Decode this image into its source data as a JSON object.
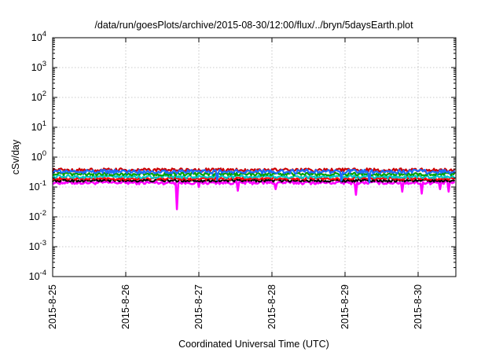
{
  "chart_data": {
    "type": "line",
    "title": "/data/run/goesPlots/archive/2015-08-30/12:00/flux/../bryn/5daysEarth.plot",
    "xlabel": "Coordinated Universal Time (UTC)",
    "ylabel": "cSv/day",
    "yscale": "log",
    "ylim": [
      0.0001,
      10000
    ],
    "xlim": [
      "2015-08-25",
      "2015-08-30 12:00"
    ],
    "grid": true,
    "x_ticks": [
      "2015-8-25",
      "2015-8-26",
      "2015-8-27",
      "2015-8-28",
      "2015-8-29",
      "2015-8-30"
    ],
    "y_ticks": [
      {
        "base": "10",
        "exp": "-4"
      },
      {
        "base": "10",
        "exp": "-3"
      },
      {
        "base": "10",
        "exp": "-2"
      },
      {
        "base": "10",
        "exp": "-1"
      },
      {
        "base": "10",
        "exp": "0"
      },
      {
        "base": "10",
        "exp": "1"
      },
      {
        "base": "10",
        "exp": "2"
      },
      {
        "base": "10",
        "exp": "3"
      },
      {
        "base": "10",
        "exp": "4"
      }
    ],
    "series": [
      {
        "color": "#ff00ff",
        "base": 0.14,
        "amp": 0.12,
        "dips": [
          [
            1.7,
            0.018
          ],
          [
            2.53,
            0.075
          ],
          [
            3.05,
            0.085
          ],
          [
            4.15,
            0.055
          ],
          [
            4.78,
            0.07
          ],
          [
            5.05,
            0.06
          ],
          [
            5.42,
            0.07
          ],
          [
            5.3,
            0.085
          ],
          [
            2.0,
            0.1
          ]
        ]
      },
      {
        "color": "#000000",
        "base": 0.165,
        "amp": 0.1,
        "dips": []
      },
      {
        "color": "#ff0000",
        "base": 0.19,
        "amp": 0.1,
        "dips": []
      },
      {
        "color": "#00c8c8",
        "base": 0.22,
        "amp": 0.12,
        "dips": []
      },
      {
        "color": "#00a000",
        "base": 0.27,
        "amp": 0.12,
        "dips": []
      },
      {
        "color": "#cc0000",
        "base": 0.37,
        "amp": 0.14,
        "dips": []
      },
      {
        "color": "#1e6cff",
        "base": 0.33,
        "amp": 0.16,
        "dips": [
          [
            2.25,
            0.17
          ],
          [
            3.95,
            0.16
          ],
          [
            4.33,
            0.14
          ]
        ]
      }
    ]
  }
}
